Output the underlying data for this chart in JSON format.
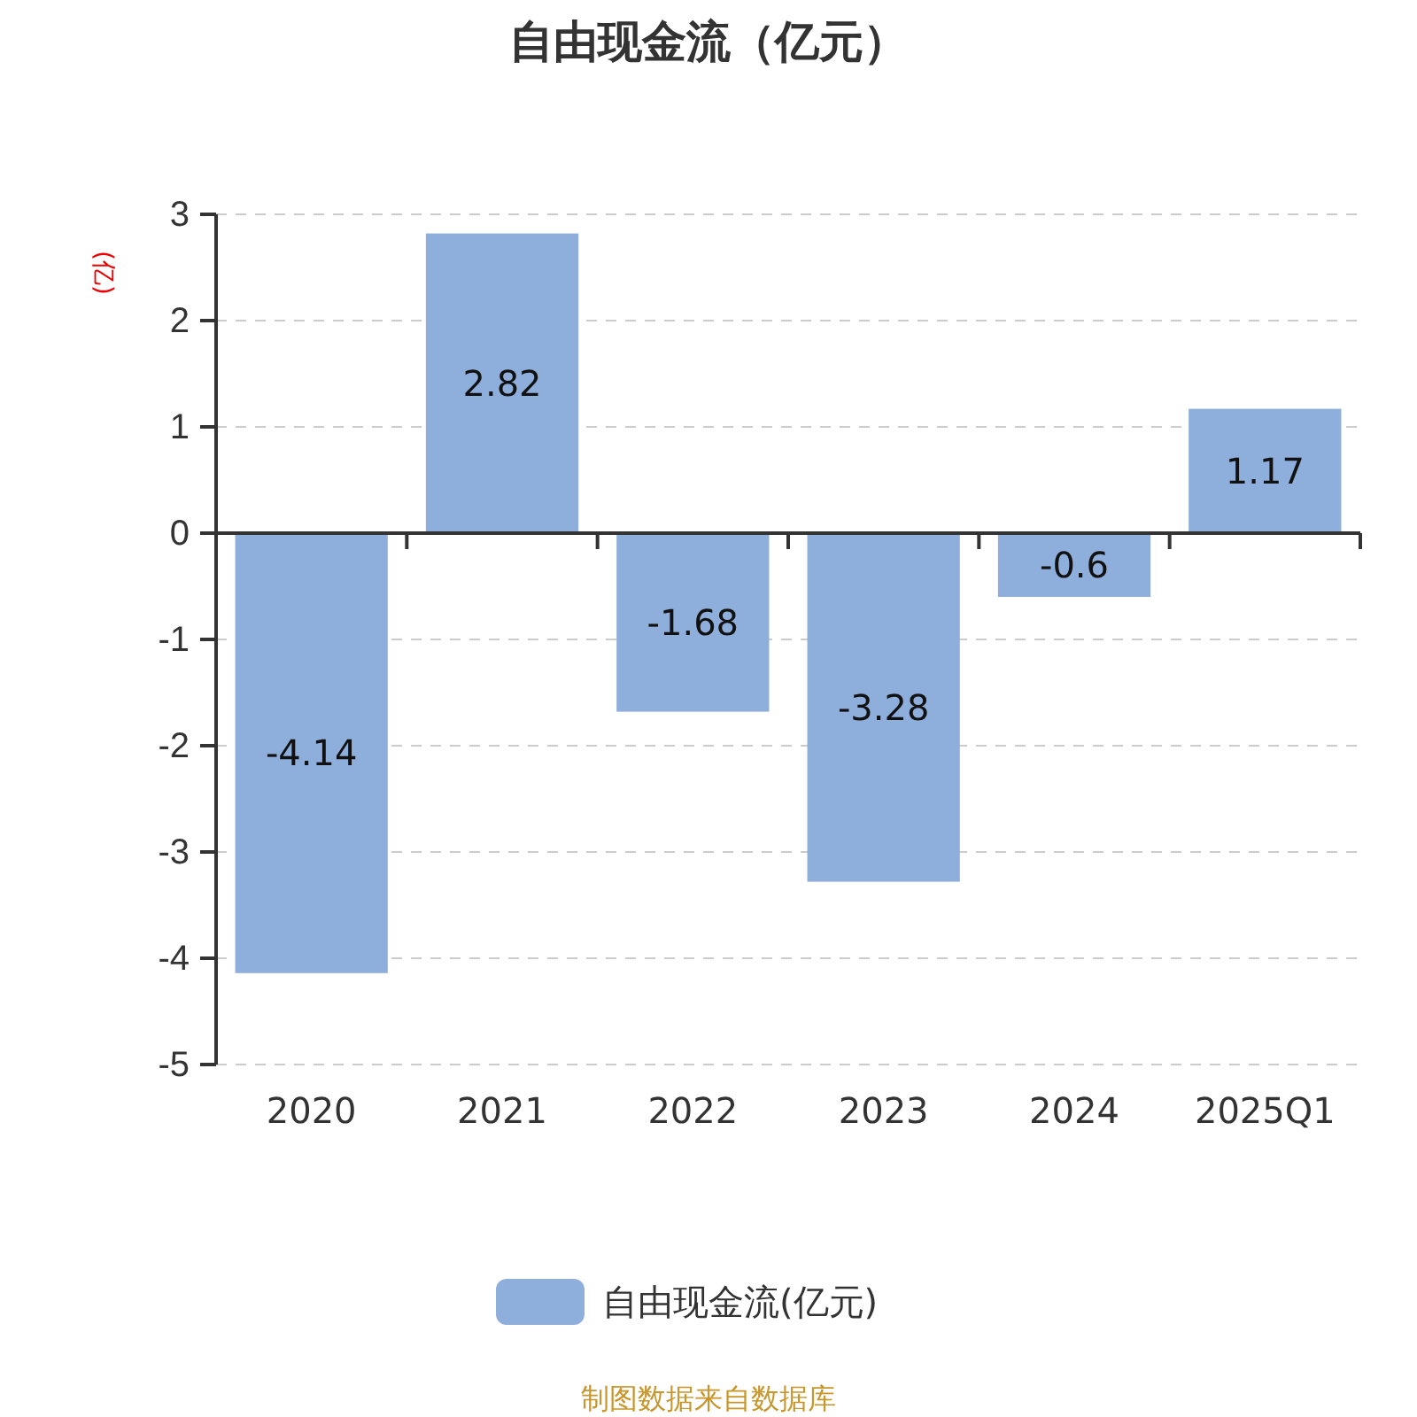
{
  "chart_data": {
    "type": "bar",
    "title": "自由现金流（亿元）",
    "ylabel": "(亿)",
    "categories": [
      "2020",
      "2021",
      "2022",
      "2023",
      "2024",
      "2025Q1"
    ],
    "series": [
      {
        "name": "自由现金流(亿元)",
        "color": "#8eaedb",
        "values": [
          -4.14,
          2.82,
          -1.68,
          -3.28,
          -0.6,
          1.17
        ]
      }
    ],
    "ylim": [
      -5,
      3
    ],
    "yticks": [
      -5,
      -4,
      -3,
      -2,
      -1,
      0,
      1,
      2,
      3
    ],
    "grid": "y",
    "legend": "bottom",
    "data_labels": true,
    "annotations": [
      "制图数据来自数据库"
    ]
  }
}
